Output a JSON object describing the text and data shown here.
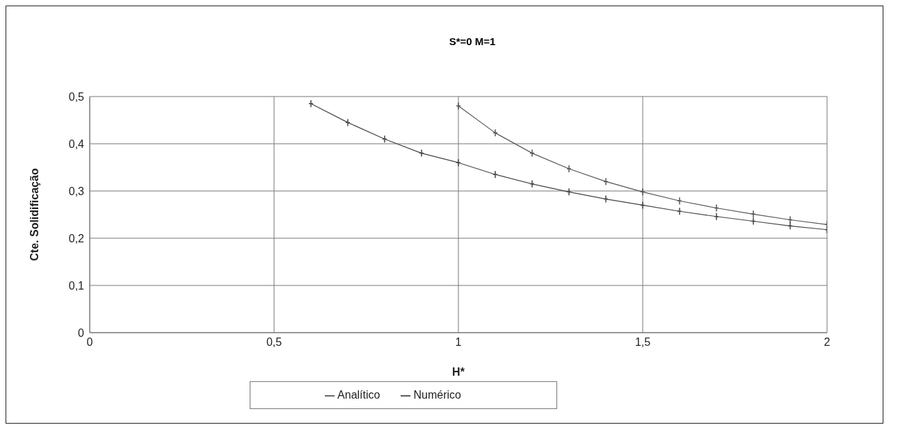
{
  "chart_data": {
    "type": "line",
    "title": "S*=0 M=1",
    "xlabel": "H*",
    "ylabel": "Cte. Solidificação",
    "series": [
      {
        "name": "Analítico",
        "color": "#555555",
        "x": [
          1.0,
          1.1,
          1.2,
          1.3,
          1.4,
          1.5,
          1.6,
          1.7,
          1.8,
          1.9,
          2.0
        ],
        "values": [
          0.48,
          0.423,
          0.38,
          0.347,
          0.32,
          0.298,
          0.279,
          0.264,
          0.251,
          0.239,
          0.229
        ]
      },
      {
        "name": "Numérico",
        "color": "#444444",
        "x": [
          0.6,
          0.7,
          0.8,
          0.9,
          1.0,
          1.1,
          1.2,
          1.3,
          1.4,
          1.5,
          1.6,
          1.7,
          1.8,
          1.9,
          2.0
        ],
        "values": [
          0.485,
          0.445,
          0.41,
          0.38,
          0.36,
          0.335,
          0.315,
          0.298,
          0.283,
          0.27,
          0.257,
          0.246,
          0.236,
          0.226,
          0.218
        ]
      }
    ],
    "xlim": [
      0,
      2
    ],
    "xticks": [
      0,
      {
        "value": 0.5,
        "label": "0,5"
      },
      1,
      {
        "value": 1.5,
        "label": "1,5"
      },
      2
    ],
    "ylim": [
      0,
      0.5
    ],
    "yticks": [
      0,
      {
        "value": 0.1,
        "label": "0,1"
      },
      {
        "value": 0.2,
        "label": "0,2"
      },
      {
        "value": 0.3,
        "label": "0,3"
      },
      {
        "value": 0.4,
        "label": "0,4"
      },
      {
        "value": 0.5,
        "label": "0,5"
      }
    ],
    "grid": true,
    "legend": "bottom",
    "marker": "cross",
    "line_style": "solid"
  }
}
